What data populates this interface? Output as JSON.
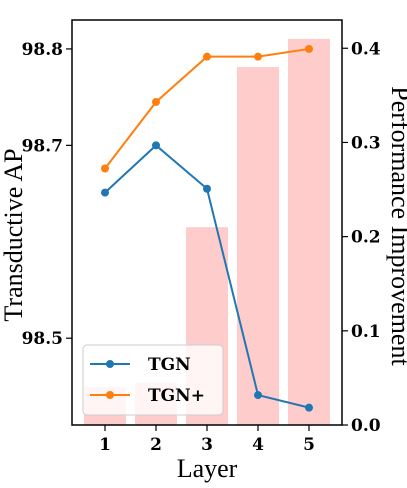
{
  "chart_data": {
    "type": "bar+line",
    "xlabel": "Layer",
    "ylabel_left": "Transductive AP",
    "ylabel_right": "Performance Improvement",
    "categories": [
      "1",
      "2",
      "3",
      "4",
      "5"
    ],
    "left_axis": {
      "ticks": [
        98.5,
        98.7,
        98.8
      ],
      "tick_labels": [
        "98.5",
        "98.7",
        "98.8"
      ],
      "range": [
        98.41,
        98.83
      ]
    },
    "right_axis": {
      "ticks": [
        0.0,
        0.1,
        0.2,
        0.3,
        0.4
      ],
      "tick_labels": [
        "0.0",
        "0.1",
        "0.2",
        "0.3",
        "0.4"
      ],
      "range": [
        0.0,
        0.43
      ]
    },
    "bars": {
      "axis": "right",
      "color": "#ffcccc",
      "values": [
        0.04,
        0.045,
        0.21,
        0.38,
        0.41
      ]
    },
    "series": [
      {
        "name": "TGN",
        "axis": "left",
        "color": "#1f77b4",
        "values": [
          98.651,
          98.7,
          98.655,
          98.441,
          98.428
        ]
      },
      {
        "name": "TGN+",
        "axis": "left",
        "color": "#ff7f0e",
        "values": [
          98.676,
          98.745,
          98.792,
          98.792,
          98.8
        ]
      }
    ],
    "legend": {
      "position": "bottom-left",
      "entries": [
        "TGN",
        "TGN+"
      ]
    },
    "grid": false
  }
}
